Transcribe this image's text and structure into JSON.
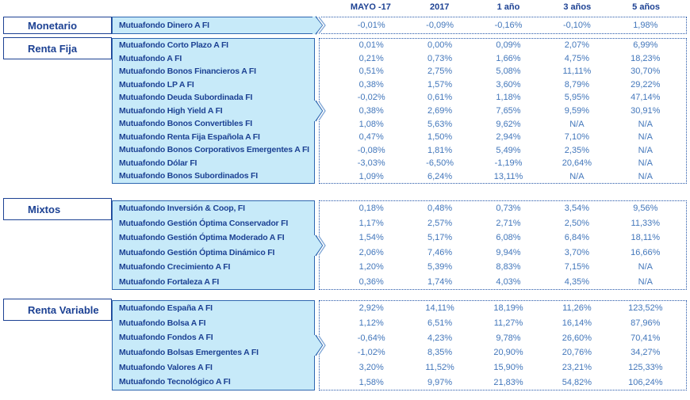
{
  "header": {
    "columns": [
      "MAYO -17",
      "2017",
      "1 año",
      "3 años",
      "5 años"
    ]
  },
  "sections": [
    {
      "category": "Monetario",
      "funds": [
        {
          "name": "Mutuafondo Dinero A FI",
          "values": [
            "-0,01%",
            "-0,09%",
            "-0,16%",
            "-0,10%",
            "1,98%"
          ]
        }
      ]
    },
    {
      "category": "Renta Fija",
      "funds": [
        {
          "name": "Mutuafondo Corto Plazo A FI",
          "values": [
            "0,01%",
            "0,00%",
            "0,09%",
            "2,07%",
            "6,99%"
          ]
        },
        {
          "name": "Mutuafondo A FI",
          "values": [
            "0,21%",
            "0,73%",
            "1,66%",
            "4,75%",
            "18,23%"
          ]
        },
        {
          "name": "Mutuafondo Bonos Financieros A FI",
          "values": [
            "0,51%",
            "2,75%",
            "5,08%",
            "11,11%",
            "30,70%"
          ]
        },
        {
          "name": "Mutuafondo LP A FI",
          "values": [
            "0,38%",
            "1,57%",
            "3,60%",
            "8,79%",
            "29,22%"
          ]
        },
        {
          "name": "Mutuafondo Deuda Subordinada FI",
          "values": [
            "-0,02%",
            "0,61%",
            "1,18%",
            "5,95%",
            "47,14%"
          ]
        },
        {
          "name": "Mutuafondo High Yield A FI",
          "values": [
            "0,38%",
            "2,69%",
            "7,65%",
            "9,59%",
            "30,91%"
          ]
        },
        {
          "name": "Mutuafondo Bonos Convertibles FI",
          "values": [
            "1,08%",
            "5,63%",
            "9,62%",
            "N/A",
            "N/A"
          ]
        },
        {
          "name": "Mutuafondo Renta Fija Española A FI",
          "values": [
            "0,47%",
            "1,50%",
            "2,94%",
            "7,10%",
            "N/A"
          ]
        },
        {
          "name": "Mutuafondo Bonos Corporativos Emergentes A FI",
          "values": [
            "-0,08%",
            "1,81%",
            "5,49%",
            "2,35%",
            "N/A"
          ]
        },
        {
          "name": "Mutuafondo Dólar FI",
          "values": [
            "-3,03%",
            "-6,50%",
            "-1,19%",
            "20,64%",
            "N/A"
          ]
        },
        {
          "name": "Mutuafondo Bonos Subordinados FI",
          "values": [
            "1,09%",
            "6,24%",
            "13,11%",
            "N/A",
            "N/A"
          ]
        }
      ]
    },
    {
      "category": "Mixtos",
      "funds": [
        {
          "name": "Mutuafondo Inversión & Coop, FI",
          "values": [
            "0,18%",
            "0,48%",
            "0,73%",
            "3,54%",
            "9,56%"
          ]
        },
        {
          "name": "Mutuafondo Gestión Óptima Conservador FI",
          "values": [
            "1,17%",
            "2,57%",
            "2,71%",
            "2,50%",
            "11,33%"
          ]
        },
        {
          "name": "Mutuafondo Gestión Óptima Moderado A FI",
          "values": [
            "1,54%",
            "5,17%",
            "6,08%",
            "6,84%",
            "18,11%"
          ]
        },
        {
          "name": "Mutuafondo Gestión Óptima Dinámico FI",
          "values": [
            "2,06%",
            "7,46%",
            "9,94%",
            "3,70%",
            "16,66%"
          ]
        },
        {
          "name": "Mutuafondo Crecimiento A FI",
          "values": [
            "1,20%",
            "5,39%",
            "8,83%",
            "7,15%",
            "N/A"
          ]
        },
        {
          "name": "Mutuafondo Fortaleza A FI",
          "values": [
            "0,36%",
            "1,74%",
            "4,03%",
            "4,35%",
            "N/A"
          ]
        }
      ]
    },
    {
      "category": "Renta Variable",
      "funds": [
        {
          "name": "Mutuafondo España A FI",
          "values": [
            "2,92%",
            "14,11%",
            "18,19%",
            "11,26%",
            "123,52%"
          ]
        },
        {
          "name": "Mutuafondo Bolsa A FI",
          "values": [
            "1,12%",
            "6,51%",
            "11,27%",
            "16,14%",
            "87,96%"
          ]
        },
        {
          "name": "Mutuafondo Fondos A FI",
          "values": [
            "-0,64%",
            "4,23%",
            "9,78%",
            "26,60%",
            "70,41%"
          ]
        },
        {
          "name": "Mutuafondo Bolsas Emergentes A FI",
          "values": [
            "-1,02%",
            "8,35%",
            "20,90%",
            "20,76%",
            "34,27%"
          ]
        },
        {
          "name": "Mutuafondo Valores A FI",
          "values": [
            "3,20%",
            "11,52%",
            "15,90%",
            "23,21%",
            "125,33%"
          ]
        },
        {
          "name": "Mutuafondo Tecnológico A FI",
          "values": [
            "1,58%",
            "9,97%",
            "21,83%",
            "54,82%",
            "106,24%"
          ]
        }
      ]
    }
  ],
  "colors": {
    "accent_navy": "#1c4193",
    "value_text_blue": "#4377bb",
    "panel_fill_blue": "#c7eaf9",
    "panel_border_blue": "#2e66b0",
    "dotted_border_blue": "#2456a8"
  }
}
